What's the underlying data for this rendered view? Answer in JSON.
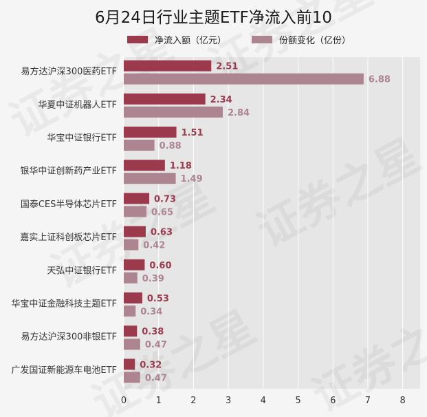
{
  "title": "6月24日行业主题ETF净流入前10",
  "watermark": "证券之星",
  "chart_data": {
    "type": "bar",
    "orientation": "horizontal",
    "title": "6月24日行业主题ETF净流入前10",
    "categories": [
      "易方达沪深300医药ETF",
      "华夏中证机器人ETF",
      "华宝中证银行ETF",
      "银华中证创新药产业ETF",
      "国泰CES半导体芯片ETF",
      "嘉实上证科创板芯片ETF",
      "天弘中证银行ETF",
      "华宝中证金融科技主题ETF",
      "易方达沪深300非银ETF",
      "广发国证新能源车电池ETF"
    ],
    "series": [
      {
        "name": "净流入额（亿元）",
        "color": "#9b3a4d",
        "values": [
          2.51,
          2.34,
          1.51,
          1.18,
          0.73,
          0.63,
          0.6,
          0.53,
          0.38,
          0.32
        ]
      },
      {
        "name": "份额变化（亿份）",
        "color": "#ac8590",
        "values": [
          6.88,
          2.84,
          0.88,
          1.49,
          0.65,
          0.42,
          0.39,
          0.34,
          0.47,
          0.47
        ]
      }
    ],
    "xlim": [
      0,
      8.5
    ],
    "xticks": [
      0,
      1,
      2,
      3,
      4,
      5,
      6,
      7,
      8
    ],
    "grid": true,
    "legend": "top-center",
    "plot_background": "#e6e6e6",
    "gridline_color": "#ffffff",
    "label_color_series1": "#9b3a4d",
    "label_color_series2": "#ac8590"
  }
}
